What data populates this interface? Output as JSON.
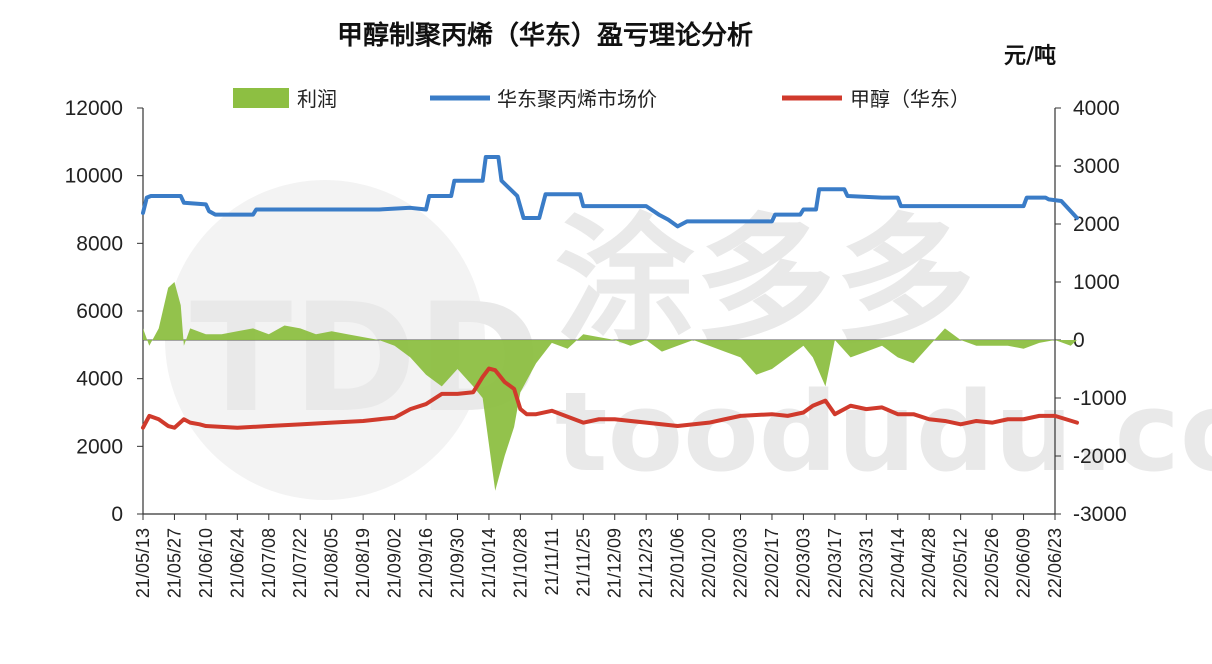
{
  "chart_data": {
    "type": "line",
    "title": "甲醇制聚丙烯（华东）盈亏理论分析",
    "unit_label": "元/吨",
    "watermark": {
      "logo": "TDD",
      "cn": "涂多多",
      "url": "toodudu.com"
    },
    "y_left": {
      "min": 0,
      "max": 12000,
      "ticks": [
        "0",
        "2000",
        "4000",
        "6000",
        "8000",
        "10000",
        "12000"
      ]
    },
    "y_right": {
      "min": -3000,
      "max": 4000,
      "ticks": [
        "-3000",
        "-2000",
        "-1000",
        "0",
        "1000",
        "2000",
        "3000",
        "4000"
      ]
    },
    "x_labels": [
      "21/05/13",
      "21/05/27",
      "21/06/10",
      "21/06/24",
      "21/07/08",
      "21/07/22",
      "21/08/05",
      "21/08/19",
      "21/09/02",
      "21/09/16",
      "21/09/30",
      "21/10/14",
      "21/10/28",
      "21/11/11",
      "21/11/25",
      "21/12/09",
      "21/12/23",
      "22/01/06",
      "22/01/20",
      "22/02/03",
      "22/02/17",
      "22/03/03",
      "22/03/17",
      "22/03/31",
      "22/04/14",
      "22/04/28",
      "22/05/12",
      "22/05/26",
      "22/06/09",
      "22/06/23"
    ],
    "legend": [
      {
        "name": "利润",
        "color": "#8dbf42",
        "kind": "area"
      },
      {
        "name": "华东聚丙烯市场价",
        "color": "#3a7cc7",
        "kind": "line"
      },
      {
        "name": "甲醇（华东）",
        "color": "#d03a2c",
        "kind": "line"
      }
    ],
    "series": [
      {
        "name": "华东聚丙烯市场价",
        "axis": "left",
        "color": "#3a7cc7",
        "x": [
          0,
          0.12,
          0.25,
          1.2,
          1.3,
          2.0,
          2.1,
          2.3,
          3.5,
          3.6,
          4.5,
          5.5,
          6.5,
          7.5,
          8.5,
          9.0,
          9.1,
          9.8,
          9.9,
          10.8,
          10.9,
          11.3,
          11.4,
          11.9,
          12.1,
          12.6,
          12.8,
          13.9,
          14.0,
          15.0,
          16.0,
          16.4,
          16.7,
          17.0,
          17.3,
          18.5,
          19.5,
          20.0,
          20.1,
          20.9,
          21.0,
          21.4,
          21.5,
          22.3,
          22.4,
          23.5,
          24.0,
          24.1,
          25.0,
          26.0,
          27.0,
          28.0,
          28.1,
          28.7,
          28.8,
          29.2,
          29.7
        ],
        "y": [
          8900,
          9350,
          9400,
          9400,
          9200,
          9150,
          8950,
          8850,
          8850,
          9000,
          9000,
          9000,
          9000,
          9000,
          9050,
          9000,
          9400,
          9400,
          9850,
          9850,
          10550,
          10550,
          9850,
          9400,
          8750,
          8750,
          9450,
          9450,
          9100,
          9100,
          9100,
          8850,
          8700,
          8500,
          8650,
          8650,
          8650,
          8650,
          8850,
          8850,
          9000,
          9000,
          9600,
          9600,
          9400,
          9350,
          9350,
          9100,
          9100,
          9100,
          9100,
          9100,
          9350,
          9350,
          9300,
          9250,
          8750
        ]
      },
      {
        "name": "甲醇（华东）",
        "axis": "left",
        "color": "#d03a2c",
        "x": [
          0,
          0.2,
          0.5,
          0.8,
          1.0,
          1.3,
          1.5,
          1.8,
          2.0,
          3.0,
          4.0,
          5.0,
          6.0,
          7.0,
          8.0,
          8.5,
          9.0,
          9.5,
          10.0,
          10.5,
          10.8,
          11.0,
          11.2,
          11.5,
          11.8,
          12.0,
          12.2,
          12.5,
          13.0,
          14.0,
          14.5,
          15.0,
          16.0,
          17.0,
          18.0,
          18.5,
          19.0,
          20.0,
          20.5,
          21.0,
          21.3,
          21.7,
          22.0,
          22.5,
          23.0,
          23.5,
          24.0,
          24.5,
          25.0,
          25.5,
          26.0,
          26.5,
          27.0,
          27.5,
          28.0,
          28.5,
          29.0,
          29.7
        ],
        "y": [
          2550,
          2900,
          2800,
          2600,
          2550,
          2800,
          2700,
          2650,
          2600,
          2550,
          2600,
          2650,
          2700,
          2750,
          2850,
          3100,
          3250,
          3550,
          3550,
          3600,
          4050,
          4300,
          4250,
          3900,
          3700,
          3100,
          2950,
          2950,
          3050,
          2700,
          2800,
          2800,
          2700,
          2600,
          2700,
          2800,
          2900,
          2950,
          2900,
          3000,
          3200,
          3350,
          2950,
          3200,
          3100,
          3150,
          2950,
          2950,
          2800,
          2750,
          2650,
          2750,
          2700,
          2800,
          2800,
          2900,
          2900,
          2700
        ]
      },
      {
        "name": "利润",
        "axis": "right",
        "color": "#8dbf42",
        "x": [
          0,
          0.2,
          0.5,
          0.8,
          1.0,
          1.2,
          1.3,
          1.5,
          2.0,
          2.5,
          3.0,
          3.5,
          4.0,
          4.5,
          5.0,
          5.5,
          6.0,
          6.5,
          7.0,
          7.5,
          8.0,
          8.5,
          9.0,
          9.5,
          10.0,
          10.5,
          10.8,
          11.0,
          11.2,
          11.5,
          11.8,
          12.0,
          12.5,
          13.0,
          13.5,
          14.0,
          14.5,
          15.0,
          15.5,
          16.0,
          16.5,
          17.0,
          17.5,
          18.0,
          18.5,
          19.0,
          19.5,
          20.0,
          20.5,
          21.0,
          21.3,
          21.7,
          22.0,
          22.5,
          23.0,
          23.5,
          24.0,
          24.5,
          25.0,
          25.5,
          26.0,
          26.5,
          27.0,
          27.5,
          28.0,
          28.5,
          29.0,
          29.5,
          29.7
        ],
        "y": [
          200,
          -100,
          200,
          900,
          1000,
          600,
          -100,
          200,
          100,
          100,
          150,
          200,
          100,
          250,
          200,
          100,
          150,
          100,
          50,
          0,
          -100,
          -300,
          -600,
          -800,
          -500,
          -800,
          -1000,
          -1800,
          -2600,
          -2000,
          -1500,
          -900,
          -400,
          -50,
          -150,
          100,
          50,
          0,
          -100,
          0,
          -200,
          -100,
          0,
          -100,
          -200,
          -300,
          -600,
          -500,
          -300,
          -100,
          -300,
          -800,
          0,
          -300,
          -200,
          -100,
          -300,
          -400,
          -100,
          200,
          0,
          -100,
          -100,
          -100,
          -150,
          -50,
          0,
          -100,
          0
        ]
      }
    ]
  }
}
